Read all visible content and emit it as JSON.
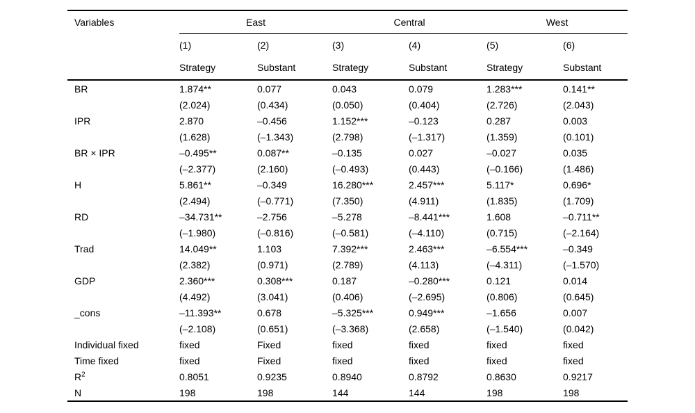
{
  "table": {
    "variables_header": "Variables",
    "col_groups": [
      {
        "label": "East"
      },
      {
        "label": "Central"
      },
      {
        "label": "West"
      }
    ],
    "model_numbers": [
      "(1)",
      "(2)",
      "(3)",
      "(4)",
      "(5)",
      "(6)"
    ],
    "model_types": [
      "Strategy",
      "Substant",
      "Strategy",
      "Substant",
      "Strategy",
      "Substant"
    ],
    "rows": [
      {
        "label": "BR",
        "coef": [
          "1.874**",
          "0.077",
          "0.043",
          "0.079",
          "1.283***",
          "0.141**"
        ],
        "tstat": [
          "(2.024)",
          "(0.434)",
          "(0.050)",
          "(0.404)",
          "(2.726)",
          "(2.043)"
        ]
      },
      {
        "label": "IPR",
        "coef": [
          "2.870",
          "–0.456",
          "1.152***",
          "–0.123",
          "0.287",
          "0.003"
        ],
        "tstat": [
          "(1.628)",
          "(–1.343)",
          "(2.798)",
          "(–1.317)",
          "(1.359)",
          "(0.101)"
        ]
      },
      {
        "label": "BR × IPR",
        "coef": [
          "–0.495**",
          "0.087**",
          "–0.135",
          "0.027",
          "–0.027",
          "0.035"
        ],
        "tstat": [
          "(–2.377)",
          "(2.160)",
          "(–0.493)",
          "(0.443)",
          "(–0.166)",
          "(1.486)"
        ]
      },
      {
        "label": "H",
        "coef": [
          "5.861**",
          "–0.349",
          "16.280***",
          "2.457***",
          "5.117*",
          "0.696*"
        ],
        "tstat": [
          "(2.494)",
          "(–0.771)",
          "(7.350)",
          "(4.911)",
          "(1.835)",
          "(1.709)"
        ]
      },
      {
        "label": "RD",
        "coef": [
          "–34.731**",
          "–2.756",
          "–5.278",
          "–8.441***",
          "1.608",
          "–0.711**"
        ],
        "tstat": [
          "(–1.980)",
          "(–0.816)",
          "(–0.581)",
          "(–4.110)",
          "(0.715)",
          "(–2.164)"
        ]
      },
      {
        "label": "Trad",
        "coef": [
          "14.049**",
          "1.103",
          "7.392***",
          "2.463***",
          "–6.554***",
          "–0.349"
        ],
        "tstat": [
          "(2.382)",
          "(0.971)",
          "(2.789)",
          "(4.113)",
          "(–4.311)",
          "(–1.570)"
        ]
      },
      {
        "label": "GDP",
        "coef": [
          "2.360***",
          "0.308***",
          "0.187",
          "–0.280***",
          "0.121",
          "0.014"
        ],
        "tstat": [
          "(4.492)",
          "(3.041)",
          "(0.406)",
          "(–2.695)",
          "(0.806)",
          "(0.645)"
        ]
      },
      {
        "label": "_cons",
        "coef": [
          "–11.393**",
          "0.678",
          "–5.325***",
          "0.949***",
          "–1.656",
          "0.007"
        ],
        "tstat": [
          "(–2.108)",
          "(0.651)",
          "(–3.368)",
          "(2.658)",
          "(–1.540)",
          "(0.042)"
        ]
      }
    ],
    "footer_rows": [
      {
        "label": "Individual fixed",
        "values": [
          "fixed",
          "Fixed",
          "fixed",
          "fixed",
          "fixed",
          "fixed"
        ]
      },
      {
        "label": "Time fixed",
        "values": [
          "fixed",
          "Fixed",
          "fixed",
          "fixed",
          "fixed",
          "fixed"
        ]
      },
      {
        "label": "R",
        "label_sup": "2",
        "values": [
          "0.8051",
          "0.9235",
          "0.8940",
          "0.8792",
          "0.8630",
          "0.9217"
        ]
      },
      {
        "label": "N",
        "values": [
          "198",
          "198",
          "144",
          "144",
          "198",
          "198"
        ]
      }
    ]
  }
}
